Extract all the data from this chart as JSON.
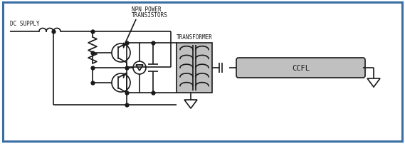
{
  "bg_color": "#ffffff",
  "border_color": "#3a6ea5",
  "line_color": "#1a1a1a",
  "gray_fill": "#c0c0c0",
  "label_dc_supply": "DC SUPPLY",
  "label_npn_line1": "NPN POWER",
  "label_npn_line2": "TRANSISTORS",
  "label_transformer": "TRANSFORMER",
  "label_ccfl": "CCFL"
}
